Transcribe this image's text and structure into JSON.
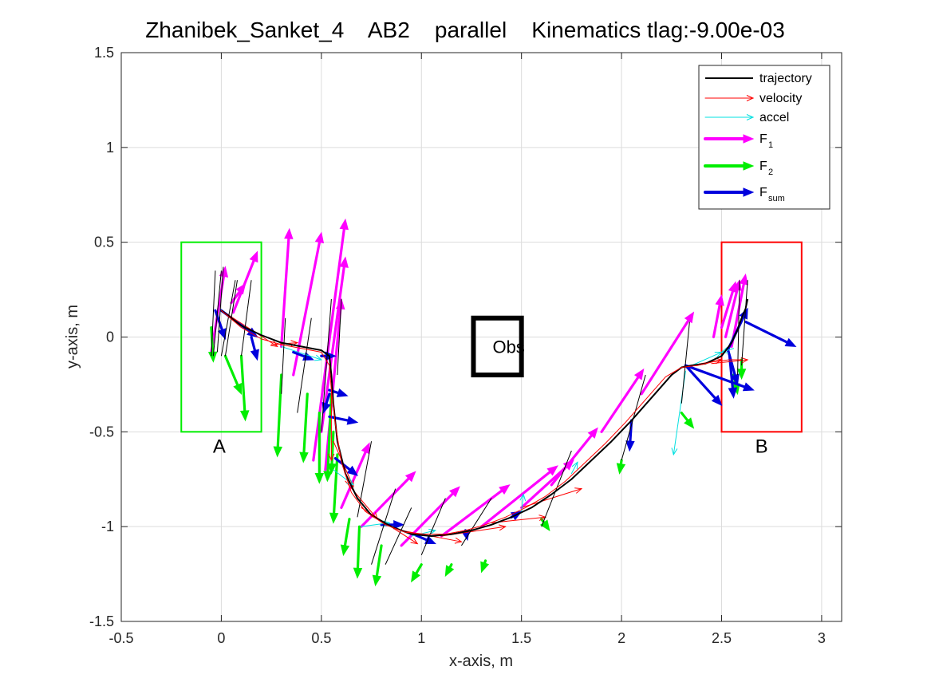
{
  "chart_data": {
    "type": "line",
    "title": "Zhanibek_Sanket_4    AB2    parallel    Kinematics tlag:-9.00e-03",
    "xlabel": "x-axis, m",
    "ylabel": "y-axis, m",
    "xlim": [
      -0.5,
      3.1
    ],
    "ylim": [
      -1.5,
      1.5
    ],
    "xticks": [
      -0.5,
      0,
      0.5,
      1,
      1.5,
      2,
      2.5,
      3
    ],
    "xtick_labels": [
      "-0.5",
      "0",
      "0.5",
      "1",
      "1.5",
      "2",
      "2.5",
      "3"
    ],
    "yticks": [
      -1.5,
      -1,
      -0.5,
      0,
      0.5,
      1,
      1.5
    ],
    "ytick_labels": [
      "-1.5",
      "-1",
      "-0.5",
      "0",
      "0.5",
      "1",
      "1.5"
    ],
    "grid": true,
    "legend_position": "top-right",
    "legend": [
      {
        "text": "trajectory",
        "sub": "",
        "color": "#000000",
        "style": "line"
      },
      {
        "text": "velocity",
        "sub": "",
        "color": "#ff0000",
        "style": "thin-arrow"
      },
      {
        "text": "accel",
        "sub": "",
        "color": "#00e0e0",
        "style": "thin-arrow"
      },
      {
        "text": "F",
        "sub": "1",
        "color": "#ff00ff",
        "style": "thick-arrow"
      },
      {
        "text": "F",
        "sub": "2",
        "color": "#00ee00",
        "style": "thick-arrow"
      },
      {
        "text": "F",
        "sub": "sum",
        "color": "#0000dd",
        "style": "thick-arrow"
      }
    ],
    "regions": [
      {
        "label": "A",
        "x": [
          -0.2,
          0.2
        ],
        "y": [
          -0.5,
          0.5
        ],
        "color": "#00ee00",
        "label_at": [
          -0.01,
          -0.61
        ]
      },
      {
        "label": "B",
        "x": [
          2.5,
          2.9
        ],
        "y": [
          -0.5,
          0.5
        ],
        "color": "#ff0000",
        "label_at": [
          2.7,
          -0.61
        ]
      }
    ],
    "obstacle": {
      "label": "Obs",
      "x": [
        1.26,
        1.5
      ],
      "y": [
        -0.2,
        0.1
      ],
      "color": "#000000"
    },
    "series": [
      {
        "name": "trajectory",
        "color": "#000000",
        "x": [
          0.0,
          0.1,
          0.2,
          0.3,
          0.4,
          0.5,
          0.54,
          0.55,
          0.56,
          0.58,
          0.62,
          0.68,
          0.75,
          0.85,
          0.95,
          1.05,
          1.15,
          1.25,
          1.35,
          1.45,
          1.55,
          1.65,
          1.75,
          1.85,
          1.95,
          2.05,
          2.15,
          2.25,
          2.3,
          2.35,
          2.42,
          2.5,
          2.55,
          2.58,
          2.6,
          2.62,
          2.63
        ],
        "y": [
          0.14,
          0.06,
          0.01,
          -0.03,
          -0.05,
          -0.07,
          -0.1,
          -0.2,
          -0.35,
          -0.55,
          -0.72,
          -0.85,
          -0.94,
          -1.0,
          -1.04,
          -1.05,
          -1.04,
          -1.02,
          -0.99,
          -0.95,
          -0.9,
          -0.83,
          -0.75,
          -0.65,
          -0.55,
          -0.44,
          -0.32,
          -0.2,
          -0.16,
          -0.15,
          -0.14,
          -0.1,
          -0.03,
          0.04,
          0.1,
          0.15,
          0.2
        ]
      },
      {
        "name": "velocity",
        "color": "#ff0000",
        "x": [
          0.0,
          0.1,
          0.2,
          0.3,
          0.4,
          0.5,
          0.54,
          0.55,
          0.57,
          0.6,
          0.65,
          0.72,
          0.82,
          0.92,
          1.02,
          1.12,
          1.22,
          1.32,
          1.42,
          1.52,
          1.62,
          1.72,
          1.82,
          1.92,
          2.02,
          2.12,
          2.22,
          2.3,
          2.38,
          2.46,
          2.54,
          2.6
        ],
        "y": [
          0.14,
          0.05,
          -0.01,
          -0.04,
          -0.06,
          -0.08,
          -0.15,
          -0.28,
          -0.46,
          -0.66,
          -0.82,
          -0.92,
          -0.99,
          -1.03,
          -1.04,
          -1.04,
          -1.02,
          -0.99,
          -0.95,
          -0.9,
          -0.84,
          -0.76,
          -0.66,
          -0.56,
          -0.45,
          -0.33,
          -0.21,
          -0.16,
          -0.15,
          -0.13,
          -0.12,
          -0.12
        ]
      }
    ],
    "vectors": [
      {
        "kind": "F1",
        "color": "#ff00ff",
        "w": 3.2,
        "segs": [
          [
            -0.05,
            -0.08,
            0.02,
            0.37
          ],
          [
            0.05,
            0.18,
            0.12,
            0.28
          ],
          [
            0.06,
            0.13,
            0.18,
            0.45
          ],
          [
            0.3,
            -0.05,
            0.34,
            0.57
          ],
          [
            0.36,
            -0.2,
            0.5,
            0.55
          ],
          [
            0.46,
            -0.65,
            0.62,
            0.62
          ],
          [
            0.5,
            -0.5,
            0.62,
            0.42
          ],
          [
            0.52,
            -0.7,
            0.6,
            0.2
          ],
          [
            0.6,
            -0.9,
            0.74,
            -0.56
          ],
          [
            0.7,
            -1.0,
            0.97,
            -0.71
          ],
          [
            0.9,
            -1.1,
            1.19,
            -0.79
          ],
          [
            1.1,
            -1.05,
            1.44,
            -0.78
          ],
          [
            1.3,
            -1.0,
            1.68,
            -0.68
          ],
          [
            1.5,
            -0.9,
            1.76,
            -0.65
          ],
          [
            1.65,
            -0.78,
            1.88,
            -0.48
          ],
          [
            1.9,
            -0.5,
            2.11,
            -0.17
          ],
          [
            2.1,
            -0.3,
            2.36,
            0.13
          ],
          [
            2.46,
            0.0,
            2.5,
            0.22
          ],
          [
            2.5,
            0.05,
            2.57,
            0.29
          ],
          [
            2.52,
            0.0,
            2.59,
            0.3
          ],
          [
            2.55,
            -0.05,
            2.62,
            0.33
          ]
        ]
      },
      {
        "kind": "F2",
        "color": "#00ee00",
        "w": 3.2,
        "segs": [
          [
            -0.05,
            0.05,
            -0.04,
            -0.13
          ],
          [
            0.02,
            -0.1,
            0.1,
            -0.3
          ],
          [
            0.1,
            -0.1,
            0.12,
            -0.44
          ],
          [
            0.3,
            -0.2,
            0.28,
            -0.63
          ],
          [
            0.43,
            -0.3,
            0.41,
            -0.66
          ],
          [
            0.49,
            -0.4,
            0.49,
            -0.77
          ],
          [
            0.55,
            -0.3,
            0.53,
            -0.76
          ],
          [
            0.56,
            -0.5,
            0.55,
            -0.72
          ],
          [
            0.58,
            -0.62,
            0.56,
            -0.98
          ],
          [
            0.64,
            -0.96,
            0.61,
            -1.15
          ],
          [
            0.69,
            -1.0,
            0.68,
            -1.27
          ],
          [
            0.8,
            -1.1,
            0.77,
            -1.31
          ],
          [
            1.0,
            -1.2,
            0.95,
            -1.29
          ],
          [
            1.15,
            -1.2,
            1.12,
            -1.26
          ],
          [
            1.32,
            -1.18,
            1.3,
            -1.24
          ],
          [
            1.6,
            -0.96,
            1.64,
            -1.02
          ],
          [
            2.0,
            -0.65,
            1.99,
            -0.72
          ],
          [
            2.3,
            -0.4,
            2.36,
            -0.48
          ],
          [
            2.56,
            -0.2,
            2.58,
            -0.3
          ],
          [
            2.6,
            -0.12,
            2.6,
            -0.22
          ]
        ]
      },
      {
        "kind": "Fsum",
        "color": "#0000dd",
        "w": 3.2,
        "segs": [
          [
            -0.03,
            0.14,
            0.02,
            -0.01
          ],
          [
            0.0,
            0.14,
            0.18,
            0.0
          ],
          [
            0.15,
            0.0,
            0.18,
            -0.12
          ],
          [
            0.36,
            -0.08,
            0.46,
            -0.12
          ],
          [
            0.5,
            -0.1,
            0.57,
            -0.1
          ],
          [
            0.54,
            -0.3,
            0.51,
            -0.4
          ],
          [
            0.54,
            -0.28,
            0.63,
            -0.31
          ],
          [
            0.54,
            -0.42,
            0.68,
            -0.45
          ],
          [
            0.57,
            -0.64,
            0.68,
            -0.73
          ],
          [
            0.8,
            -0.99,
            0.91,
            -0.99
          ],
          [
            0.96,
            -1.04,
            1.07,
            -1.09
          ],
          [
            1.22,
            -1.02,
            1.23,
            -1.07
          ],
          [
            1.45,
            -0.95,
            1.5,
            -0.92
          ],
          [
            2.05,
            -0.44,
            2.04,
            -0.6
          ],
          [
            2.32,
            -0.15,
            2.5,
            -0.36
          ],
          [
            2.32,
            -0.15,
            2.66,
            -0.28
          ],
          [
            2.53,
            -0.07,
            2.63,
            0.15
          ],
          [
            2.62,
            0.08,
            2.87,
            -0.05
          ],
          [
            2.54,
            -0.1,
            2.56,
            -0.32
          ],
          [
            2.53,
            -0.06,
            2.58,
            -0.25
          ]
        ]
      },
      {
        "kind": "velocity",
        "color": "#ff0000",
        "w": 1,
        "segs": [
          [
            0.0,
            0.14,
            0.28,
            -0.05
          ],
          [
            0.25,
            -0.04,
            0.38,
            -0.03
          ],
          [
            0.55,
            -0.25,
            0.55,
            -0.65
          ],
          [
            0.56,
            -0.55,
            0.66,
            -0.79
          ],
          [
            0.62,
            -0.76,
            0.78,
            -0.96
          ],
          [
            0.7,
            -0.9,
            0.98,
            -1.09
          ],
          [
            0.9,
            -1.02,
            1.2,
            -1.08
          ],
          [
            1.1,
            -1.05,
            1.42,
            -1.0
          ],
          [
            1.35,
            -0.98,
            1.62,
            -0.95
          ],
          [
            1.5,
            -0.9,
            1.8,
            -0.8
          ],
          [
            2.3,
            -0.16,
            2.5,
            -0.12
          ],
          [
            2.45,
            -0.14,
            2.63,
            -0.12
          ]
        ]
      },
      {
        "kind": "accel",
        "color": "#00e0e0",
        "w": 1,
        "segs": [
          [
            0.3,
            -0.05,
            0.5,
            -0.12
          ],
          [
            0.56,
            -0.7,
            0.66,
            -0.78
          ],
          [
            0.7,
            -1.0,
            0.84,
            -0.98
          ],
          [
            0.95,
            -1.05,
            1.07,
            -1.02
          ],
          [
            1.5,
            -0.92,
            1.51,
            -0.83
          ],
          [
            1.75,
            -0.72,
            1.78,
            -0.66
          ],
          [
            2.32,
            -0.18,
            2.26,
            -0.62
          ],
          [
            2.35,
            -0.15,
            2.5,
            -0.08
          ],
          [
            2.56,
            -0.06,
            2.5,
            -0.08
          ]
        ]
      },
      {
        "kind": "thin-black",
        "color": "#000000",
        "w": 1,
        "segs": [
          [
            -0.05,
            -0.1,
            -0.03,
            0.35
          ],
          [
            -0.04,
            -0.1,
            0.0,
            0.35
          ],
          [
            -0.02,
            -0.08,
            0.01,
            0.37
          ],
          [
            0.0,
            -0.1,
            0.07,
            0.3
          ],
          [
            0.02,
            -0.1,
            0.08,
            0.3
          ],
          [
            0.1,
            -0.1,
            0.15,
            0.3
          ],
          [
            0.3,
            -0.3,
            0.32,
            0.1
          ],
          [
            0.38,
            -0.4,
            0.45,
            0.1
          ],
          [
            0.5,
            -0.5,
            0.55,
            0.2
          ],
          [
            0.58,
            -0.2,
            0.6,
            0.2
          ],
          [
            0.68,
            -0.95,
            0.75,
            -0.55
          ],
          [
            0.75,
            -1.2,
            0.87,
            -0.8
          ],
          [
            0.82,
            -1.2,
            0.95,
            -0.9
          ],
          [
            1.0,
            -1.15,
            1.12,
            -0.85
          ],
          [
            1.2,
            -1.1,
            1.35,
            -0.85
          ],
          [
            1.6,
            -1.0,
            1.75,
            -0.6
          ],
          [
            2.0,
            -0.65,
            2.12,
            -0.2
          ],
          [
            2.3,
            -0.35,
            2.34,
            0.08
          ],
          [
            2.58,
            -0.2,
            2.59,
            0.3
          ],
          [
            2.6,
            -0.15,
            2.63,
            0.3
          ]
        ]
      }
    ]
  }
}
